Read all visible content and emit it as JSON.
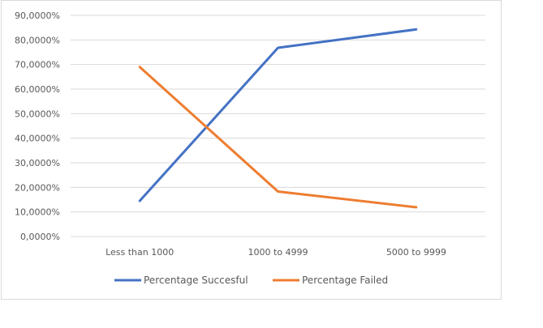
{
  "chart_data": {
    "type": "line",
    "categories": [
      "Less than 1000",
      "1000 to 4999",
      "5000 to 9999"
    ],
    "series": [
      {
        "name": "Percentage Succesful",
        "values": [
          14.5,
          76.8,
          84.3
        ],
        "color": "#4472c4"
      },
      {
        "name": "Percentage Failed",
        "values": [
          69.0,
          18.3,
          11.9
        ],
        "color": "#ed7d31"
      }
    ],
    "y_ticks": [
      "0,0000%",
      "10,0000%",
      "20,0000%",
      "30,0000%",
      "40,0000%",
      "50,0000%",
      "60,0000%",
      "70,0000%",
      "80,0000%",
      "90,0000%"
    ],
    "ylim": [
      0,
      90
    ],
    "grid": true,
    "legend_position": "bottom"
  }
}
